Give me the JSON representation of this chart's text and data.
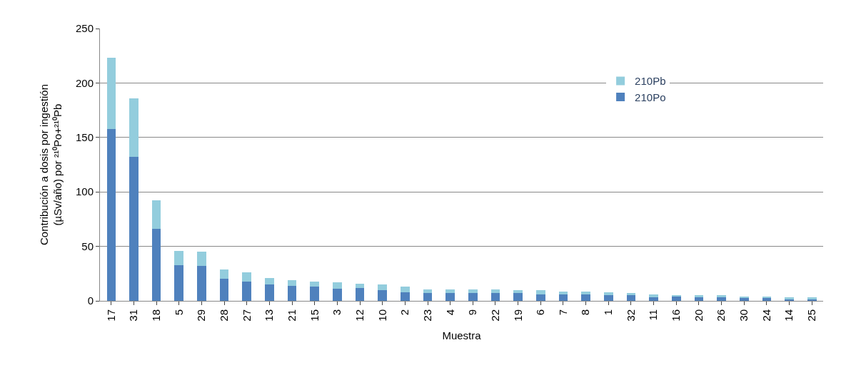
{
  "chart_data": {
    "type": "bar",
    "stacked": true,
    "xlabel": "Muestra",
    "ylabel": "Contribución a dosis por ingestión\n(µSv/año) por ²¹⁰Po+²¹⁰Pb",
    "categories": [
      "17",
      "31",
      "18",
      "5",
      "29",
      "28",
      "27",
      "13",
      "21",
      "15",
      "3",
      "12",
      "10",
      "2",
      "23",
      "4",
      "9",
      "22",
      "19",
      "6",
      "7",
      "8",
      "1",
      "32",
      "11",
      "16",
      "20",
      "26",
      "30",
      "24",
      "14",
      "25"
    ],
    "series": [
      {
        "name": "210Po",
        "color": "#4f81bd",
        "values": [
          158,
          132,
          66,
          33,
          32,
          20,
          18,
          15,
          14,
          13,
          11,
          12,
          10,
          8,
          7,
          7,
          7,
          7,
          7,
          6,
          6,
          6,
          5,
          5,
          3.5,
          4,
          3,
          3,
          3,
          2.5,
          1.5,
          1.5
        ]
      },
      {
        "name": "210Pb",
        "color": "#93cddd",
        "values": [
          65,
          54,
          26,
          13,
          13,
          9,
          8,
          6,
          5,
          5,
          6,
          4,
          5,
          5,
          3.5,
          3.5,
          3.5,
          3.5,
          2.5,
          3.5,
          2.5,
          2.5,
          3,
          2,
          2.5,
          1,
          2,
          2,
          1,
          1.5,
          1.5,
          1.5
        ]
      }
    ],
    "ylim": [
      0,
      250
    ],
    "yticks": [
      0,
      50,
      100,
      150,
      200,
      250
    ],
    "grid": "y",
    "legend": "top right"
  }
}
